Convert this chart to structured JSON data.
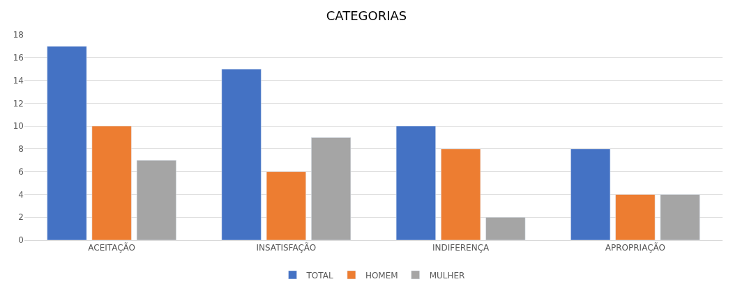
{
  "chart_data": {
    "type": "bar",
    "title": "CATEGORIAS",
    "categories": [
      "ACEITAÇÃO",
      "INSATISFAÇÃO",
      "INDIFERENÇA",
      "APROPRIAÇÃO"
    ],
    "series": [
      {
        "name": "TOTAL",
        "color": "#4472c4",
        "values": [
          17,
          15,
          10,
          8
        ]
      },
      {
        "name": "HOMEM",
        "color": "#ed7d31",
        "values": [
          10,
          6,
          8,
          4
        ]
      },
      {
        "name": "MULHER",
        "color": "#a5a5a5",
        "values": [
          7,
          9,
          2,
          4
        ]
      }
    ],
    "ylim": [
      0,
      18
    ],
    "yticks": [
      0,
      2,
      4,
      6,
      8,
      10,
      12,
      14,
      16,
      18
    ],
    "grid": "y",
    "legend": "bottom"
  }
}
